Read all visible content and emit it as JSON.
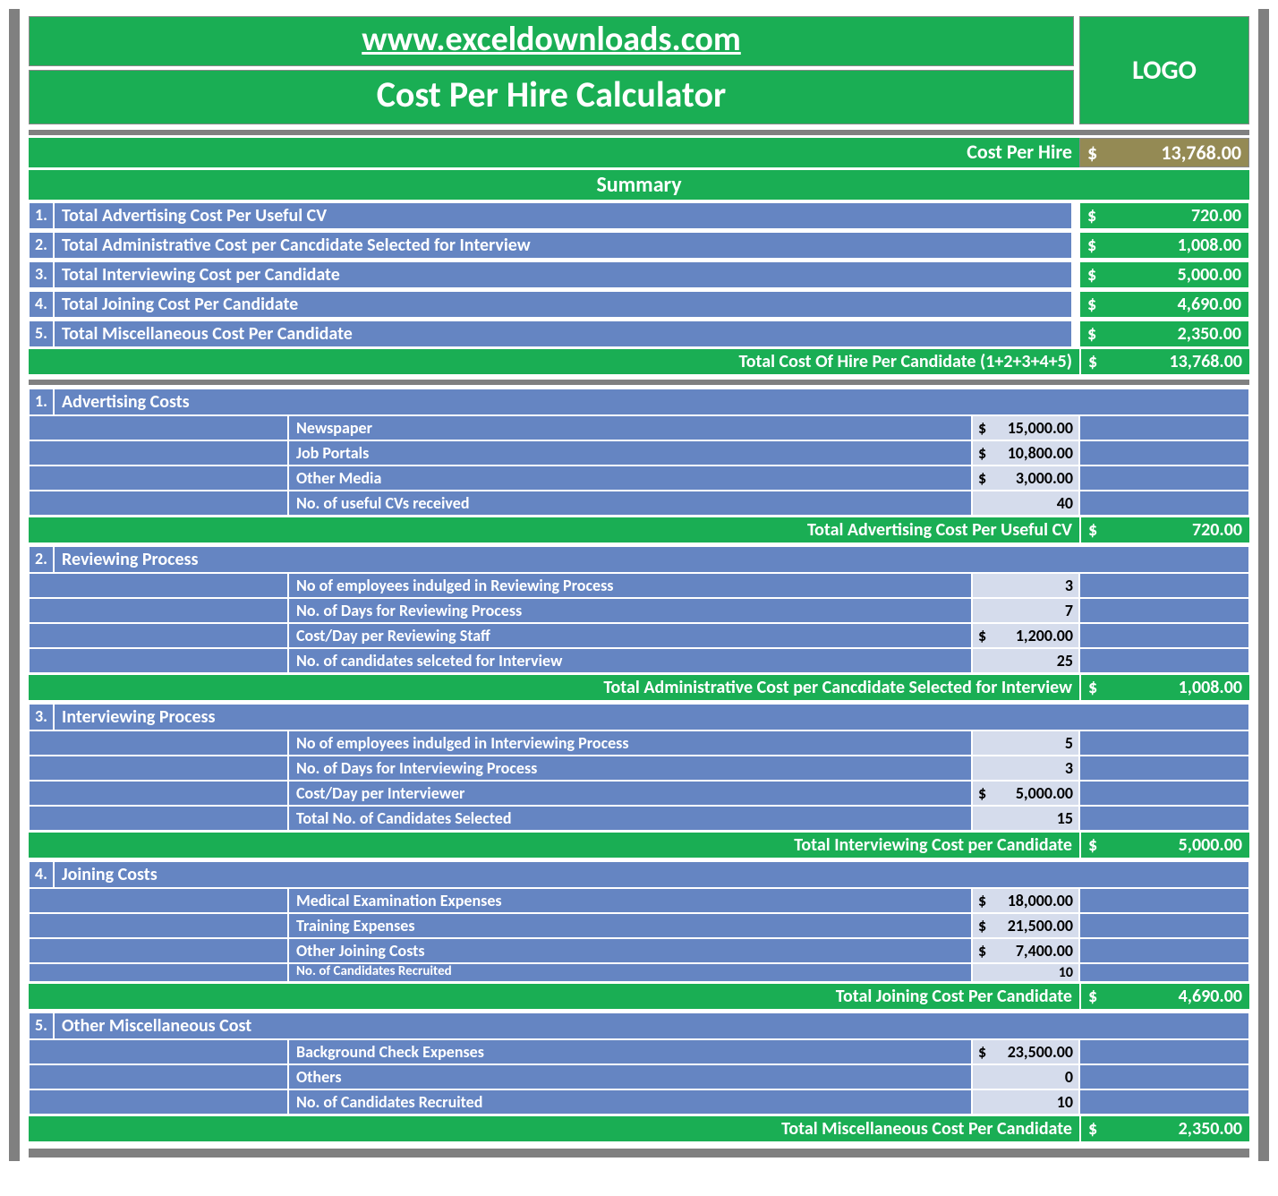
{
  "header": {
    "url": "www.exceldownloads.com",
    "title": "Cost Per Hire Calculator",
    "logo": "LOGO"
  },
  "cph": {
    "label": "Cost Per Hire",
    "currency": "$",
    "value": "13,768.00"
  },
  "summary": {
    "title": "Summary",
    "rows": [
      {
        "num": "1.",
        "label": "Total Advertising Cost Per Useful CV",
        "currency": "$",
        "value": "720.00"
      },
      {
        "num": "2.",
        "label": "Total Administrative Cost per Cancdidate Selected for Interview",
        "currency": "$",
        "value": "1,008.00"
      },
      {
        "num": "3.",
        "label": "Total Interviewing Cost per Candidate",
        "currency": "$",
        "value": "5,000.00"
      },
      {
        "num": "4.",
        "label": "Total Joining Cost Per Candidate",
        "currency": "$",
        "value": "4,690.00"
      },
      {
        "num": "5.",
        "label": "Total Miscellaneous Cost Per Candidate",
        "currency": "$",
        "value": "2,350.00"
      }
    ],
    "total": {
      "label": "Total Cost Of Hire Per Candidate (1+2+3+4+5)",
      "currency": "$",
      "value": "13,768.00"
    }
  },
  "sections": [
    {
      "num": "1.",
      "title": "Advertising Costs",
      "items": [
        {
          "label": "Newspaper",
          "currency": "$",
          "value": "15,000.00"
        },
        {
          "label": "Job Portals",
          "currency": "$",
          "value": "10,800.00"
        },
        {
          "label": "Other Media",
          "currency": "$",
          "value": "3,000.00"
        },
        {
          "label": "No. of useful CVs received",
          "currency": "",
          "value": "40"
        }
      ],
      "total": {
        "label": "Total Advertising Cost Per Useful CV",
        "currency": "$",
        "value": "720.00"
      }
    },
    {
      "num": "2.",
      "title": "Reviewing Process",
      "items": [
        {
          "label": "No of employees indulged in Reviewing Process",
          "currency": "",
          "value": "3"
        },
        {
          "label": "No. of Days for Reviewing Process",
          "currency": "",
          "value": "7"
        },
        {
          "label": "Cost/Day per Reviewing Staff",
          "currency": "$",
          "value": "1,200.00"
        },
        {
          "label": "No. of candidates selceted for Interview",
          "currency": "",
          "value": "25"
        }
      ],
      "total": {
        "label": "Total Administrative Cost per Cancdidate Selected for Interview",
        "currency": "$",
        "value": "1,008.00"
      }
    },
    {
      "num": "3.",
      "title": "Interviewing Process",
      "items": [
        {
          "label": "No of employees indulged in Interviewing Process",
          "currency": "",
          "value": "5"
        },
        {
          "label": "No. of Days for Interviewing Process",
          "currency": "",
          "value": "3"
        },
        {
          "label": "Cost/Day per Interviewer",
          "currency": "$",
          "value": "5,000.00"
        },
        {
          "label": "Total No. of Candidates Selected",
          "currency": "",
          "value": "15"
        }
      ],
      "total": {
        "label": "Total Interviewing Cost per Candidate",
        "currency": "$",
        "value": "5,000.00"
      }
    },
    {
      "num": "4.",
      "title": "Joining Costs",
      "items": [
        {
          "label": "Medical Examination Expenses",
          "currency": "$",
          "value": "18,000.00"
        },
        {
          "label": "Training Expenses",
          "currency": "$",
          "value": "21,500.00"
        },
        {
          "label": "Other Joining Costs",
          "currency": "$",
          "value": "7,400.00"
        },
        {
          "label": "No. of Candidates Recruited",
          "currency": "",
          "value": "10",
          "small": true
        }
      ],
      "total": {
        "label": "Total Joining Cost Per Candidate",
        "currency": "$",
        "value": "4,690.00"
      }
    },
    {
      "num": "5.",
      "title": "Other Miscellaneous Cost",
      "items": [
        {
          "label": "Background Check Expenses",
          "currency": "$",
          "value": "23,500.00"
        },
        {
          "label": "Others",
          "currency": "",
          "value": "0"
        },
        {
          "label": "No. of Candidates Recruited",
          "currency": "",
          "value": "10"
        }
      ],
      "total": {
        "label": "Total Miscellaneous Cost Per Candidate",
        "currency": "$",
        "value": "2,350.00"
      }
    }
  ]
}
